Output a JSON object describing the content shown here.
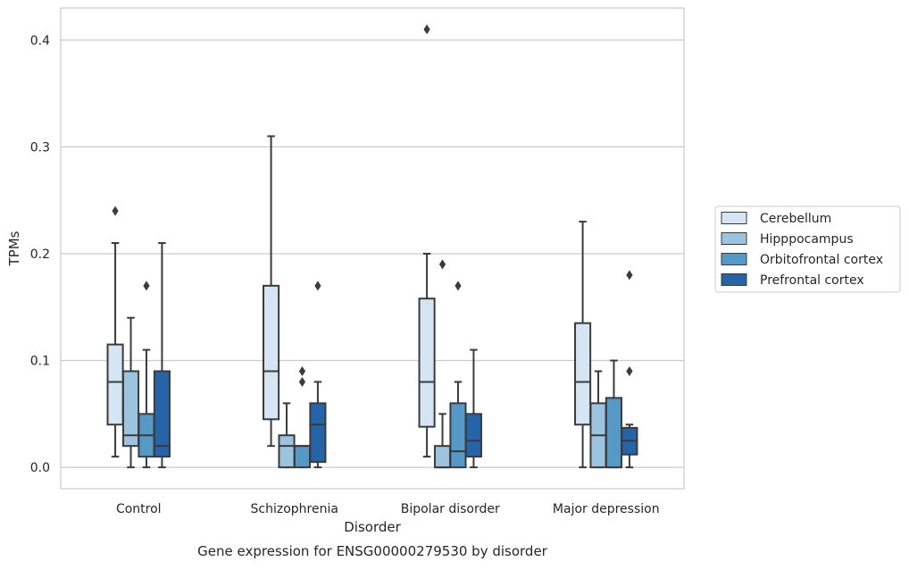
{
  "chart_data": {
    "type": "boxplot",
    "title": "",
    "caption": "Gene expression for ENSG00000279530 by disorder",
    "xlabel": "Disorder",
    "ylabel": "TPMs",
    "ylim": [
      -0.02,
      0.43
    ],
    "yticks": [
      0.0,
      0.1,
      0.2,
      0.3,
      0.4
    ],
    "ytick_labels": [
      "0.0",
      "0.1",
      "0.2",
      "0.3",
      "0.4"
    ],
    "grid": "horizontal",
    "legend_position": "right",
    "categories": [
      "Control",
      "Schizophrenia",
      "Bipolar disorder",
      "Major depression"
    ],
    "series": [
      {
        "name": "Cerebellum",
        "color": "#d6e5f4",
        "boxes": [
          {
            "min": 0.01,
            "q1": 0.04,
            "median": 0.08,
            "q3": 0.115,
            "max": 0.21,
            "outliers": [
              0.24
            ]
          },
          {
            "min": 0.02,
            "q1": 0.045,
            "median": 0.09,
            "q3": 0.17,
            "max": 0.31,
            "outliers": []
          },
          {
            "min": 0.01,
            "q1": 0.038,
            "median": 0.08,
            "q3": 0.158,
            "max": 0.2,
            "outliers": [
              0.41
            ]
          },
          {
            "min": 0.0,
            "q1": 0.04,
            "median": 0.08,
            "q3": 0.135,
            "max": 0.23,
            "outliers": []
          }
        ]
      },
      {
        "name": "Hipppocampus",
        "color": "#9dc4de",
        "boxes": [
          {
            "min": 0.0,
            "q1": 0.02,
            "median": 0.03,
            "q3": 0.09,
            "max": 0.14,
            "outliers": []
          },
          {
            "min": 0.0,
            "q1": 0.0,
            "median": 0.02,
            "q3": 0.03,
            "max": 0.06,
            "outliers": []
          },
          {
            "min": 0.0,
            "q1": 0.0,
            "median": 0.0,
            "q3": 0.02,
            "max": 0.05,
            "outliers": [
              0.19
            ]
          },
          {
            "min": 0.0,
            "q1": 0.0,
            "median": 0.03,
            "q3": 0.06,
            "max": 0.09,
            "outliers": []
          }
        ]
      },
      {
        "name": "Orbitofrontal cortex",
        "color": "#5599c7",
        "boxes": [
          {
            "min": 0.0,
            "q1": 0.01,
            "median": 0.03,
            "q3": 0.05,
            "max": 0.11,
            "outliers": [
              0.17
            ]
          },
          {
            "min": 0.0,
            "q1": 0.0,
            "median": 0.02,
            "q3": 0.02,
            "max": 0.02,
            "outliers": [
              0.08,
              0.09
            ]
          },
          {
            "min": 0.0,
            "q1": 0.0,
            "median": 0.015,
            "q3": 0.06,
            "max": 0.08,
            "outliers": [
              0.17
            ]
          },
          {
            "min": 0.0,
            "q1": 0.0,
            "median": 0.0,
            "q3": 0.065,
            "max": 0.1,
            "outliers": []
          }
        ]
      },
      {
        "name": "Prefrontal cortex",
        "color": "#2564a6",
        "boxes": [
          {
            "min": 0.0,
            "q1": 0.01,
            "median": 0.02,
            "q3": 0.09,
            "max": 0.21,
            "outliers": []
          },
          {
            "min": 0.0,
            "q1": 0.005,
            "median": 0.04,
            "q3": 0.06,
            "max": 0.08,
            "outliers": [
              0.17
            ]
          },
          {
            "min": 0.0,
            "q1": 0.01,
            "median": 0.025,
            "q3": 0.05,
            "max": 0.11,
            "outliers": []
          },
          {
            "min": 0.0,
            "q1": 0.012,
            "median": 0.025,
            "q3": 0.037,
            "max": 0.04,
            "outliers": [
              0.09,
              0.18
            ]
          }
        ]
      }
    ]
  }
}
